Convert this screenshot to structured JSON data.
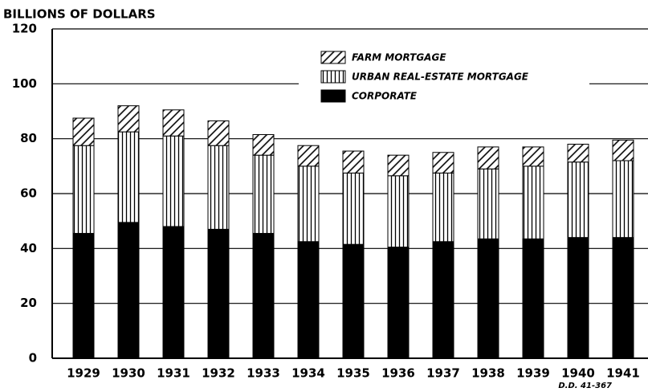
{
  "chart_data": {
    "type": "bar",
    "stacked": true,
    "title": "BILLIONS OF DOLLARS",
    "categories": [
      "1929",
      "1930",
      "1931",
      "1932",
      "1933",
      "1934",
      "1935",
      "1936",
      "1937",
      "1938",
      "1939",
      "1940",
      "1941"
    ],
    "series": [
      {
        "name": "CORPORATE",
        "color": "#000000",
        "pattern": "solid",
        "values": [
          45.5,
          49.5,
          48,
          47,
          45.5,
          42.5,
          41.5,
          40.5,
          42.5,
          43.5,
          43.5,
          44,
          44
        ]
      },
      {
        "name": "URBAN REAL-ESTATE MORTGAGE",
        "color": "#000000",
        "pattern": "vertical",
        "values": [
          32,
          33,
          33,
          30.5,
          28.5,
          27.5,
          26,
          26,
          25,
          25.5,
          26.5,
          27.5,
          28
        ]
      },
      {
        "name": "FARM MORTGAGE",
        "color": "#000000",
        "pattern": "diagonal",
        "values": [
          10,
          9.5,
          9.5,
          9,
          7.5,
          7.5,
          8,
          7.5,
          7.5,
          8,
          7,
          6.5,
          7.5
        ]
      }
    ],
    "ylim": [
      0,
      120
    ],
    "yticks": [
      0,
      20,
      40,
      60,
      80,
      100,
      120
    ],
    "grid": true,
    "annotation": "D.D. 41-367"
  }
}
